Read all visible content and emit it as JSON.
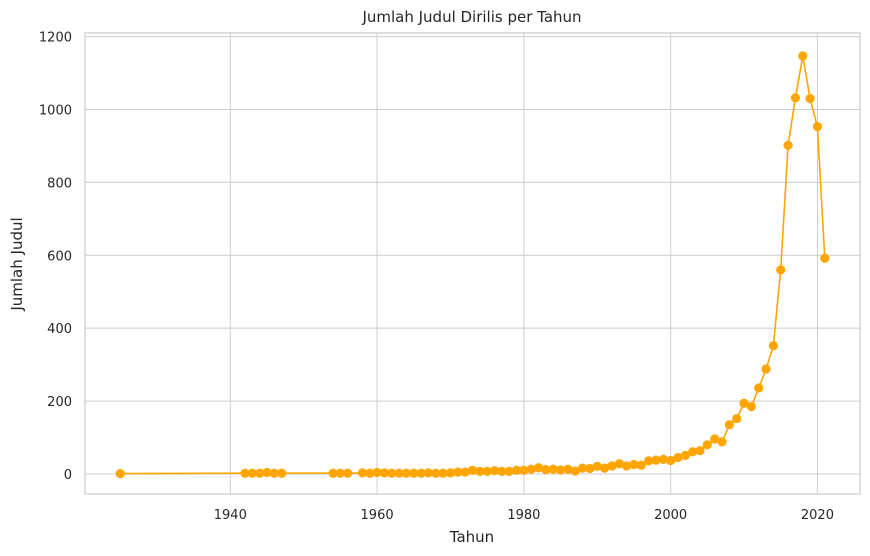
{
  "chart_data": {
    "type": "line",
    "title": "Jumlah Judul Dirilis per Tahun",
    "xlabel": "Tahun",
    "ylabel": "Jumlah Judul",
    "xlim": [
      1920.2,
      2025.8
    ],
    "ylim": [
      -55,
      1210
    ],
    "xticks": [
      1940,
      1960,
      1980,
      2000,
      2020
    ],
    "yticks": [
      0,
      200,
      400,
      600,
      800,
      1000,
      1200
    ],
    "grid": true,
    "color": "#FFA500",
    "series": [
      {
        "x": [
          1925,
          1942,
          1943,
          1944,
          1945,
          1946,
          1947,
          1954,
          1955,
          1956,
          1958,
          1959,
          1960,
          1961,
          1962,
          1963,
          1964,
          1965,
          1966,
          1967,
          1968,
          1969,
          1970,
          1971,
          1972,
          1973,
          1974,
          1975,
          1976,
          1977,
          1978,
          1979,
          1980,
          1981,
          1982,
          1983,
          1984,
          1985,
          1986,
          1987,
          1988,
          1989,
          1990,
          1991,
          1992,
          1993,
          1994,
          1995,
          1996,
          1997,
          1998,
          1999,
          2000,
          2001,
          2002,
          2003,
          2004,
          2005,
          2006,
          2007,
          2008,
          2009,
          2010,
          2011,
          2012,
          2013,
          2014,
          2015,
          2016,
          2017,
          2018,
          2019,
          2020,
          2021
        ],
        "y": [
          1,
          2,
          2,
          2,
          4,
          2,
          2,
          2,
          2,
          2,
          3,
          2,
          4,
          3,
          2,
          2,
          2,
          2,
          2,
          3,
          2,
          2,
          3,
          5,
          5,
          10,
          7,
          7,
          9,
          7,
          7,
          10,
          10,
          13,
          17,
          12,
          13,
          11,
          13,
          8,
          16,
          15,
          21,
          16,
          22,
          28,
          22,
          26,
          24,
          36,
          38,
          40,
          37,
          45,
          51,
          61,
          64,
          80,
          96,
          88,
          135,
          152,
          194,
          185,
          236,
          288,
          352,
          560,
          902,
          1032,
          1147,
          1030,
          953,
          592
        ]
      }
    ]
  }
}
